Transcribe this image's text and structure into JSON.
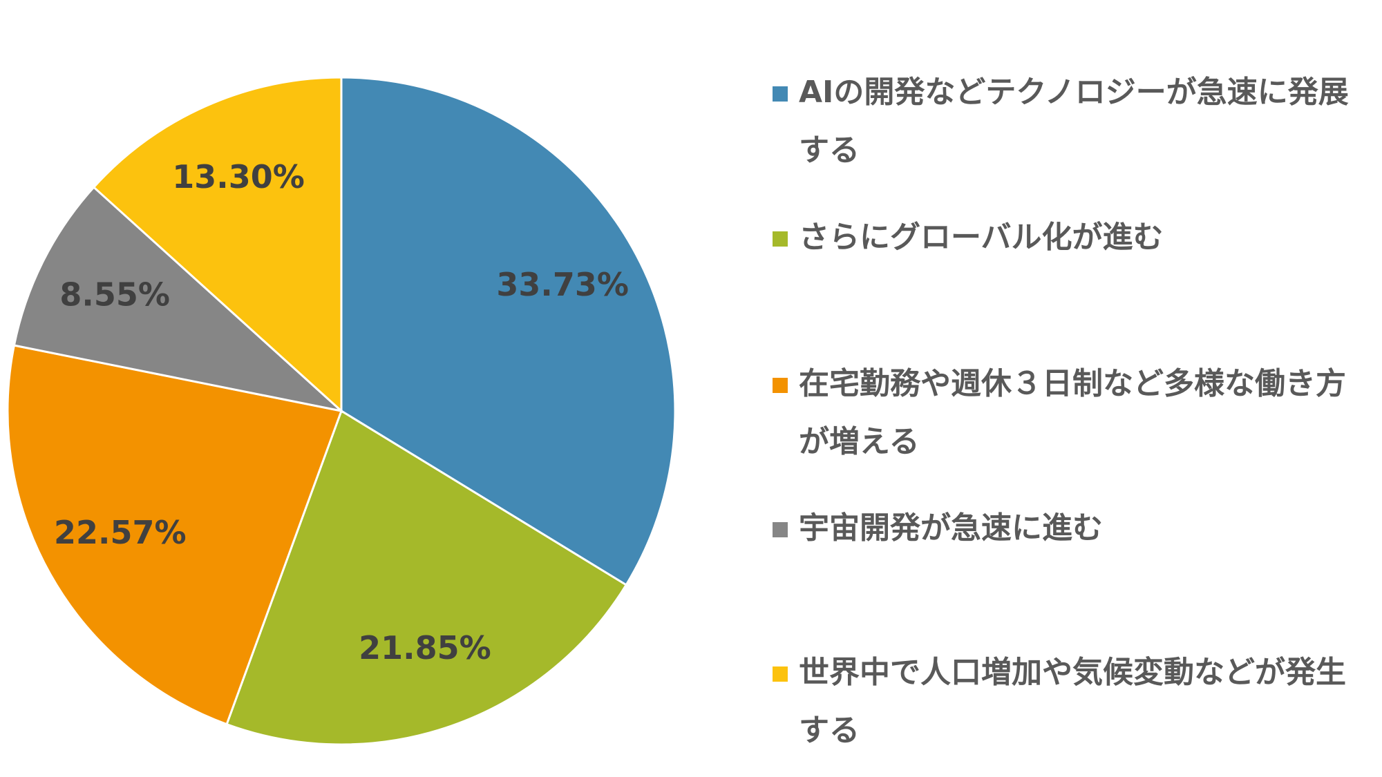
{
  "chart_data": {
    "type": "pie",
    "categories": [
      "AIの開発などテクノロジーが急速に発展する",
      "さらにグローバル化が進む",
      "在宅勤務や週休３日制など多様な働き方が増える",
      "宇宙開発が急速に進む",
      "世界中で人口増加や気候変動などが発生する"
    ],
    "values": [
      33.73,
      21.85,
      22.57,
      8.55,
      13.3
    ],
    "value_labels": [
      "33.73%",
      "21.85%",
      "22.57%",
      "8.55%",
      "13.30%"
    ],
    "colors": [
      "#4389b4",
      "#a5b92a",
      "#f39200",
      "#868686",
      "#fcc20e"
    ],
    "legend": "right"
  }
}
